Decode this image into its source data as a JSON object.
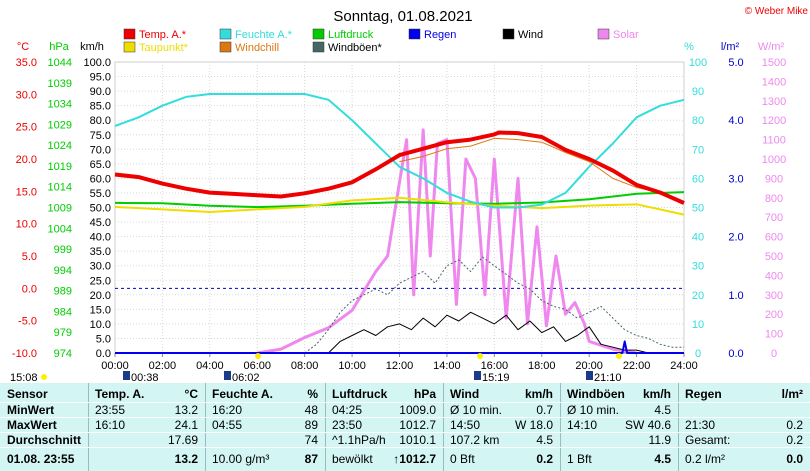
{
  "colors": {
    "temp": "#ee0000",
    "humidity": "#33dddd",
    "pressure": "#00cc00",
    "rain": "#0000ee",
    "wind": "#000000",
    "solar": "#ee88ee",
    "dewpoint": "#eedd00",
    "windchill": "#dd7711",
    "gust": "#446666"
  },
  "chart_data": {
    "type": "line",
    "title": "Sonntag, 01.08.2021",
    "credit": "© Weber Mike",
    "x_ticks": [
      "00:00",
      "02:00",
      "04:00",
      "06:00",
      "08:00",
      "10:00",
      "12:00",
      "14:00",
      "16:00",
      "18:00",
      "20:00",
      "22:00",
      "24:00"
    ],
    "axes": {
      "temp_c": {
        "label": "°C",
        "ticks": [
          "35.0",
          "30.0",
          "25.0",
          "20.0",
          "15.0",
          "10.0",
          "5.0",
          "0.0",
          "-5.0",
          "-10.0"
        ],
        "range": [
          -10,
          35
        ]
      },
      "pressure_hpa": {
        "label": "hPa",
        "ticks": [
          "1044",
          "1039",
          "1034",
          "1029",
          "1024",
          "1019",
          "1014",
          "1009",
          "1004",
          "999",
          "994",
          "989",
          "984",
          "979",
          "974"
        ],
        "range": [
          974,
          1044
        ]
      },
      "wind_kmh": {
        "label": "km/h",
        "ticks": [
          "100.0",
          "95.0",
          "90.0",
          "85.0",
          "80.0",
          "75.0",
          "70.0",
          "65.0",
          "60.0",
          "55.0",
          "50.0",
          "45.0",
          "40.0",
          "35.0",
          "30.0",
          "25.0",
          "20.0",
          "15.0",
          "10.0",
          "5.0",
          "0.0"
        ],
        "range": [
          0,
          100
        ]
      },
      "humidity_pct": {
        "label": "%",
        "ticks": [
          "100",
          "90",
          "80",
          "70",
          "60",
          "50",
          "40",
          "30",
          "20",
          "10",
          "0"
        ],
        "range": [
          0,
          100
        ]
      },
      "rain_lm2": {
        "label": "l/m²",
        "ticks": [
          "5.0",
          "4.0",
          "3.0",
          "2.0",
          "1.0",
          "0.0"
        ],
        "range": [
          0,
          5
        ]
      },
      "solar_wm2": {
        "label": "W/m²",
        "ticks": [
          "1500",
          "1400",
          "1300",
          "1200",
          "1100",
          "1000",
          "900",
          "800",
          "700",
          "600",
          "500",
          "400",
          "300",
          "200",
          "100",
          "0"
        ],
        "range": [
          0,
          1500
        ]
      }
    },
    "legend": [
      {
        "name": "Temp. A.*",
        "key": "temp"
      },
      {
        "name": "Feuchte A.*",
        "key": "humidity"
      },
      {
        "name": "Luftdruck",
        "key": "pressure"
      },
      {
        "name": "Regen",
        "key": "rain"
      },
      {
        "name": "Wind",
        "key": "wind"
      },
      {
        "name": "Solar",
        "key": "solar"
      },
      {
        "name": "Taupunkt*",
        "key": "dewpoint"
      },
      {
        "name": "Windchill",
        "key": "windchill"
      },
      {
        "name": "Windböen*",
        "key": "gust"
      }
    ],
    "series": [
      {
        "name": "Temp. A.*",
        "key": "temp",
        "axis": "temp_c",
        "x": [
          0,
          1,
          2,
          3,
          4,
          5,
          6,
          7,
          8,
          9,
          10,
          11,
          12,
          13,
          14,
          15,
          16,
          16.2,
          17,
          18,
          19,
          20,
          21,
          22,
          23,
          24
        ],
        "y": [
          17.6,
          17.2,
          16.2,
          15.4,
          14.8,
          14.6,
          14.4,
          14.2,
          14.7,
          15.4,
          16.4,
          18.4,
          20.6,
          21.6,
          22.6,
          23.0,
          23.8,
          24.1,
          24.0,
          23.4,
          21.4,
          20.0,
          18.2,
          16.0,
          14.8,
          13.2
        ]
      },
      {
        "name": "Feuchte A.*",
        "key": "humidity",
        "axis": "humidity_pct",
        "x": [
          0,
          1,
          2,
          3,
          4,
          5,
          6,
          7,
          8,
          9,
          10,
          11,
          12,
          13,
          14,
          15,
          16,
          17,
          18,
          19,
          20,
          21,
          22,
          23,
          24
        ],
        "y": [
          78,
          81,
          85,
          88,
          89,
          89,
          89,
          89,
          89,
          87,
          80,
          72,
          64,
          60,
          55,
          52,
          50,
          50,
          51,
          55,
          64,
          72,
          81,
          85,
          87
        ]
      },
      {
        "name": "Luftdruck",
        "key": "pressure",
        "axis": "pressure_hpa",
        "x": [
          0,
          2,
          4,
          6,
          8,
          10,
          12,
          14,
          16,
          18,
          20,
          22,
          24
        ],
        "y": [
          1010.1,
          1010.0,
          1009.4,
          1009.1,
          1009.4,
          1009.9,
          1010.3,
          1010.0,
          1009.9,
          1010.2,
          1011.0,
          1012.3,
          1012.7
        ]
      },
      {
        "name": "Taupunkt*",
        "key": "dewpoint",
        "axis": "temp_c",
        "x": [
          0,
          2,
          4,
          6,
          8,
          10,
          12,
          14,
          16,
          18,
          20,
          22,
          24
        ],
        "y": [
          12.6,
          12.2,
          11.8,
          12.2,
          12.6,
          13.6,
          14.0,
          13.3,
          12.8,
          12.4,
          12.8,
          13.0,
          11.4
        ]
      },
      {
        "name": "Windchill",
        "key": "windchill",
        "axis": "temp_c",
        "x": [
          12,
          13,
          14,
          15,
          16,
          17,
          18,
          19,
          20,
          21,
          22,
          23,
          24
        ],
        "y": [
          19.6,
          20.4,
          21.6,
          22.0,
          23.2,
          23.0,
          22.6,
          21.0,
          19.6,
          17.0,
          15.6,
          14.8,
          13.2
        ]
      },
      {
        "name": "Wind",
        "key": "wind",
        "axis": "wind_kmh",
        "x": [
          9,
          9.5,
          10,
          10.5,
          11,
          11.5,
          12,
          12.5,
          13,
          13.5,
          14,
          14.5,
          15,
          15.5,
          16,
          16.5,
          17,
          17.5,
          18,
          18.5,
          19,
          19.5,
          20,
          20.5,
          21,
          21.5,
          22,
          22.5,
          23,
          23.5,
          24
        ],
        "y": [
          0,
          4,
          6,
          8,
          6,
          9,
          10,
          8,
          12,
          9,
          13,
          11,
          14,
          12,
          10,
          13,
          8,
          11,
          7,
          9,
          4,
          6,
          9,
          3,
          2,
          1,
          1,
          0,
          0,
          0,
          0
        ]
      },
      {
        "name": "Windböen*",
        "key": "gust",
        "axis": "wind_kmh",
        "x": [
          8,
          8.5,
          9,
          9.5,
          10,
          10.5,
          11,
          11.5,
          12,
          12.5,
          13,
          13.5,
          14,
          14.5,
          15,
          15.5,
          16,
          16.5,
          17,
          17.5,
          18,
          18.5,
          19,
          19.5,
          20,
          20.5,
          21,
          21.5,
          22,
          22.5,
          23,
          23.5,
          24
        ],
        "y": [
          0,
          3,
          8,
          14,
          18,
          20,
          22,
          20,
          24,
          26,
          28,
          24,
          30,
          32,
          28,
          33,
          30,
          27,
          24,
          22,
          18,
          16,
          15,
          12,
          14,
          16,
          12,
          8,
          6,
          5,
          3,
          2,
          2
        ]
      },
      {
        "name": "Solar",
        "key": "solar",
        "axis": "solar_wm2",
        "x": [
          6,
          7,
          8,
          9,
          10,
          11,
          11.5,
          12,
          12.3,
          12.6,
          13,
          13.3,
          13.6,
          14,
          14.4,
          14.8,
          15.2,
          15.6,
          16,
          16.5,
          17,
          17.4,
          17.8,
          18.2,
          18.6,
          19,
          19.4,
          19.8,
          20,
          21,
          22
        ],
        "y": [
          0,
          20,
          80,
          130,
          220,
          420,
          500,
          880,
          1100,
          300,
          1150,
          500,
          1080,
          1100,
          250,
          1000,
          900,
          300,
          1000,
          180,
          900,
          150,
          650,
          140,
          500,
          200,
          260,
          150,
          60,
          20,
          0
        ]
      },
      {
        "name": "Regen",
        "key": "rain",
        "axis": "rain_lm2",
        "x": [
          0,
          21.4,
          21.5,
          21.6,
          24
        ],
        "y": [
          0,
          0,
          0.2,
          0,
          0
        ]
      }
    ],
    "reference_lines": [
      {
        "axis": "temp_c",
        "value": 0.0,
        "style": "dashed"
      }
    ],
    "below_axis": {
      "left_time": "15:08",
      "markers": [
        "00:38",
        "06:02",
        "15:19",
        "21:10"
      ]
    }
  },
  "table": {
    "columns": [
      {
        "title": "Sensor",
        "unit": ""
      },
      {
        "title": "Temp. A.",
        "unit": "°C"
      },
      {
        "title": "Feuchte A.",
        "unit": "%"
      },
      {
        "title": "Luftdruck",
        "unit": "hPa"
      },
      {
        "title": "Wind",
        "unit": "km/h"
      },
      {
        "title": "Windböen",
        "unit": "km/h"
      },
      {
        "title": "Regen",
        "unit": "l/m²"
      }
    ],
    "rows": [
      {
        "label": "MinWert",
        "cells": [
          [
            "23:55",
            "13.2"
          ],
          [
            "16:20",
            "48"
          ],
          [
            "04:25",
            "1009.0"
          ],
          [
            "Ø 10 min.",
            "0.7"
          ],
          [
            "Ø 10 min.",
            "4.5"
          ],
          [
            "",
            ""
          ]
        ]
      },
      {
        "label": "MaxWert",
        "cells": [
          [
            "16:10",
            "24.1"
          ],
          [
            "04:55",
            "89"
          ],
          [
            "23:50",
            "1012.7"
          ],
          [
            "14:50",
            "W 18.0"
          ],
          [
            "14:10",
            "SW 40.6"
          ],
          [
            "21:30",
            "0.2"
          ]
        ]
      },
      {
        "label": "Durchschnitt",
        "cells": [
          [
            "",
            "17.69"
          ],
          [
            "",
            "74"
          ],
          [
            "^1.1hPa/h",
            "1010.1"
          ],
          [
            "107.2 km",
            "4.5"
          ],
          [
            "",
            "11.9"
          ],
          [
            "Gesamt:",
            "0.2"
          ]
        ]
      },
      {
        "label": "01.08. 23:55",
        "cells": [
          [
            "",
            "13.2"
          ],
          [
            "10.00 g/m³",
            "87"
          ],
          [
            "bewölkt",
            "↑1012.7"
          ],
          [
            "0 Bft",
            "0.2"
          ],
          [
            "1 Bft",
            "4.5"
          ],
          [
            "0.2 l/m²",
            "0.0"
          ]
        ]
      }
    ]
  }
}
